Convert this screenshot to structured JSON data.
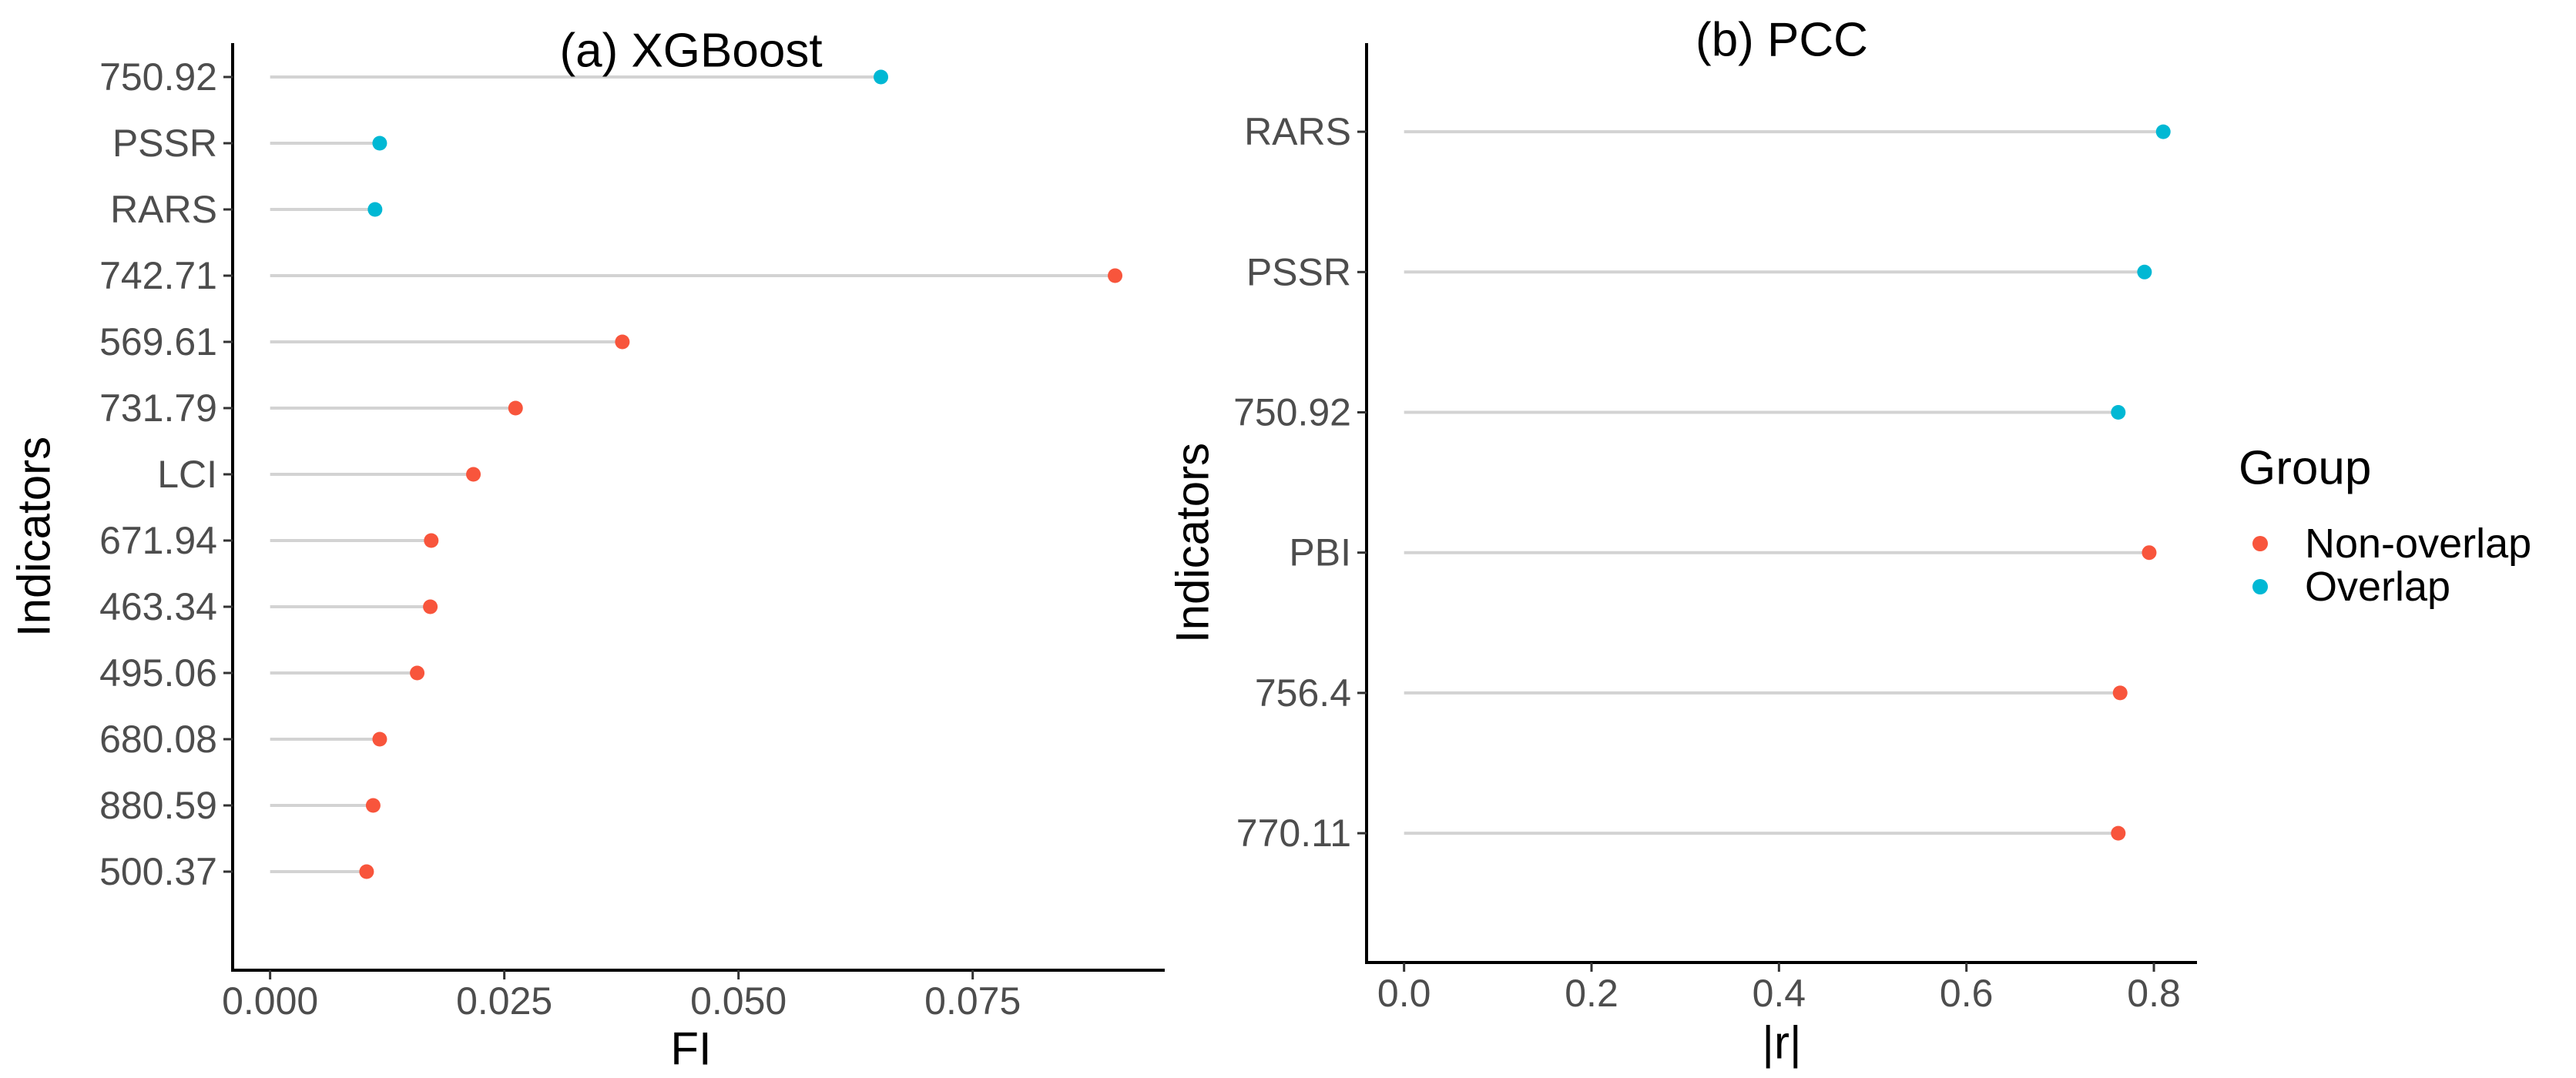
{
  "groups": [
    {
      "name": "Non-overlap",
      "color": "#F8553C"
    },
    {
      "name": "Overlap",
      "color": "#00B8D4"
    }
  ],
  "legend": {
    "title": "Group",
    "items": [
      "Non-overlap",
      "Overlap"
    ]
  },
  "chart_data": [
    {
      "type": "lollipop",
      "title": "(a) XGBoost",
      "xlabel": "FI",
      "ylabel": "Indicators",
      "xlim": [
        -0.004,
        0.0955
      ],
      "xticks": [
        0.0,
        0.025,
        0.05,
        0.075
      ],
      "xtick_labels": [
        "0.000",
        "0.025",
        "0.050",
        "0.075"
      ],
      "categories": [
        "750.92",
        "PSSR",
        "RARS",
        "742.71",
        "569.61",
        "731.79",
        "LCI",
        "671.94",
        "463.34",
        "495.06",
        "680.08",
        "880.59",
        "500.37"
      ],
      "values": [
        0.0652,
        0.0117,
        0.0112,
        0.0902,
        0.0376,
        0.0262,
        0.0217,
        0.0172,
        0.0171,
        0.0157,
        0.0117,
        0.011,
        0.0103
      ],
      "group": [
        "Overlap",
        "Overlap",
        "Overlap",
        "Non-overlap",
        "Non-overlap",
        "Non-overlap",
        "Non-overlap",
        "Non-overlap",
        "Non-overlap",
        "Non-overlap",
        "Non-overlap",
        "Non-overlap",
        "Non-overlap"
      ],
      "grid": false
    },
    {
      "type": "lollipop",
      "title": "(b) PCC",
      "xlabel": "|r|",
      "ylabel": "Indicators",
      "xlim": [
        -0.04,
        0.846
      ],
      "xticks": [
        0.0,
        0.2,
        0.4,
        0.6,
        0.8
      ],
      "xtick_labels": [
        "0.0",
        "0.2",
        "0.4",
        "0.6",
        "0.8"
      ],
      "categories": [
        "RARS",
        "PSSR",
        "750.92",
        "PBI",
        "756.4",
        "770.11"
      ],
      "values": [
        0.81,
        0.79,
        0.762,
        0.795,
        0.764,
        0.762
      ],
      "group": [
        "Overlap",
        "Overlap",
        "Overlap",
        "Non-overlap",
        "Non-overlap",
        "Non-overlap"
      ],
      "grid": false
    }
  ]
}
